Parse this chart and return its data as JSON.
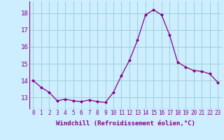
{
  "hours": [
    0,
    1,
    2,
    3,
    4,
    5,
    6,
    7,
    8,
    9,
    10,
    11,
    12,
    13,
    14,
    15,
    16,
    17,
    18,
    19,
    20,
    21,
    22,
    23
  ],
  "values": [
    14.0,
    13.6,
    13.3,
    12.8,
    12.9,
    12.8,
    12.75,
    12.85,
    12.75,
    12.7,
    13.3,
    14.3,
    15.2,
    16.4,
    17.9,
    18.2,
    17.9,
    16.7,
    15.1,
    14.8,
    14.6,
    14.55,
    14.4,
    13.9
  ],
  "line_color": "#880088",
  "marker": "D",
  "marker_size": 2.0,
  "marker_linewidth": 0.5,
  "line_width": 0.9,
  "bg_color": "#cceeff",
  "grid_color": "#99cccc",
  "xlabel": "Windchill (Refroidissement éolien,°C)",
  "xlabel_color": "#880088",
  "xlabel_fontsize": 6.5,
  "tick_color": "#880088",
  "xtick_fontsize": 5.5,
  "ytick_fontsize": 6.5,
  "ytick_values": [
    13,
    14,
    15,
    16,
    17,
    18
  ],
  "ylim": [
    12.3,
    18.7
  ],
  "xlim": [
    -0.5,
    23.5
  ]
}
